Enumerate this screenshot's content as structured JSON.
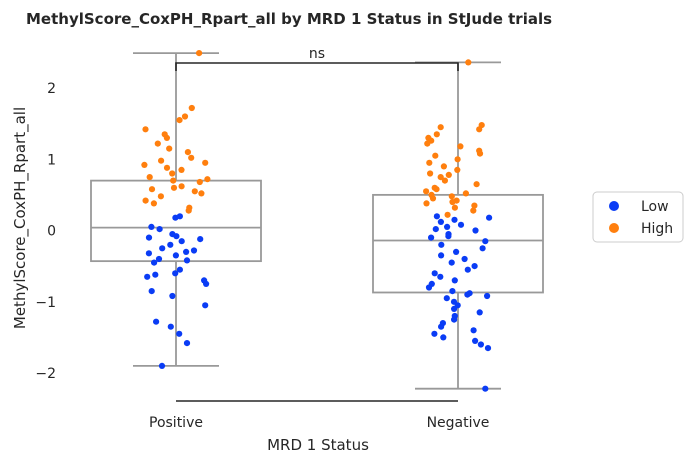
{
  "chart_data": {
    "type": "box-strip",
    "title": "MethylScore_CoxPH_Rpart_all by MRD 1 Status in StJude trials",
    "xlabel": "MRD 1 Status",
    "ylabel": "MethylScore_CoxPH_Rpart_all",
    "categories": [
      "Positive",
      "Negative"
    ],
    "ylim": [
      -2.45,
      2.5
    ],
    "yticks": [
      -2,
      -1,
      0,
      1,
      2
    ],
    "ytick_labels": [
      "−2",
      "−1",
      "0",
      "1",
      "2"
    ],
    "grid": false,
    "annotation": "ns",
    "boxes": [
      {
        "category": "Positive",
        "whisker_low": -1.9,
        "q1": -0.43,
        "median": 0.04,
        "q3": 0.7,
        "whisker_high": 2.49
      },
      {
        "category": "Negative",
        "whisker_low": -2.22,
        "q1": -0.87,
        "median": -0.14,
        "q3": 0.5,
        "whisker_high": 2.36
      }
    ],
    "legend": {
      "position": "right",
      "entries": [
        {
          "label": "Low",
          "color": "#0a3cf5"
        },
        {
          "label": "High",
          "color": "#ff7f0e"
        }
      ]
    },
    "series": [
      {
        "name": "Low",
        "color": "#0a3cf5",
        "points": [
          {
            "cat": 0,
            "y": 0.18
          },
          {
            "cat": 0,
            "y": 0.2
          },
          {
            "cat": 0,
            "y": 0.05
          },
          {
            "cat": 0,
            "y": 0.02
          },
          {
            "cat": 0,
            "y": -0.05
          },
          {
            "cat": 0,
            "y": -0.08
          },
          {
            "cat": 0,
            "y": -0.1
          },
          {
            "cat": 0,
            "y": -0.12
          },
          {
            "cat": 0,
            "y": -0.15
          },
          {
            "cat": 0,
            "y": -0.2
          },
          {
            "cat": 0,
            "y": -0.25
          },
          {
            "cat": 0,
            "y": -0.28
          },
          {
            "cat": 0,
            "y": -0.3
          },
          {
            "cat": 0,
            "y": -0.32
          },
          {
            "cat": 0,
            "y": -0.35
          },
          {
            "cat": 0,
            "y": -0.4
          },
          {
            "cat": 0,
            "y": -0.42
          },
          {
            "cat": 0,
            "y": -0.45
          },
          {
            "cat": 0,
            "y": -0.55
          },
          {
            "cat": 0,
            "y": -0.6
          },
          {
            "cat": 0,
            "y": -0.62
          },
          {
            "cat": 0,
            "y": -0.65
          },
          {
            "cat": 0,
            "y": -0.7
          },
          {
            "cat": 0,
            "y": -0.75
          },
          {
            "cat": 0,
            "y": -0.85
          },
          {
            "cat": 0,
            "y": -0.92
          },
          {
            "cat": 0,
            "y": -1.05
          },
          {
            "cat": 0,
            "y": -1.28
          },
          {
            "cat": 0,
            "y": -1.35
          },
          {
            "cat": 0,
            "y": -1.45
          },
          {
            "cat": 0,
            "y": -1.58
          },
          {
            "cat": 0,
            "y": -1.9
          },
          {
            "cat": 1,
            "y": 0.2
          },
          {
            "cat": 1,
            "y": 0.18
          },
          {
            "cat": 1,
            "y": 0.15
          },
          {
            "cat": 1,
            "y": 0.12
          },
          {
            "cat": 1,
            "y": 0.08
          },
          {
            "cat": 1,
            "y": 0.05
          },
          {
            "cat": 1,
            "y": 0.02
          },
          {
            "cat": 1,
            "y": 0.0
          },
          {
            "cat": 1,
            "y": -0.05
          },
          {
            "cat": 1,
            "y": -0.08
          },
          {
            "cat": 1,
            "y": -0.1
          },
          {
            "cat": 1,
            "y": -0.15
          },
          {
            "cat": 1,
            "y": -0.2
          },
          {
            "cat": 1,
            "y": -0.25
          },
          {
            "cat": 1,
            "y": -0.3
          },
          {
            "cat": 1,
            "y": -0.35
          },
          {
            "cat": 1,
            "y": -0.4
          },
          {
            "cat": 1,
            "y": -0.45
          },
          {
            "cat": 1,
            "y": -0.5
          },
          {
            "cat": 1,
            "y": -0.55
          },
          {
            "cat": 1,
            "y": -0.6
          },
          {
            "cat": 1,
            "y": -0.65
          },
          {
            "cat": 1,
            "y": -0.7
          },
          {
            "cat": 1,
            "y": -0.75
          },
          {
            "cat": 1,
            "y": -0.8
          },
          {
            "cat": 1,
            "y": -0.85
          },
          {
            "cat": 1,
            "y": -0.88
          },
          {
            "cat": 1,
            "y": -0.9
          },
          {
            "cat": 1,
            "y": -0.92
          },
          {
            "cat": 1,
            "y": -0.95
          },
          {
            "cat": 1,
            "y": -1.0
          },
          {
            "cat": 1,
            "y": -1.05
          },
          {
            "cat": 1,
            "y": -1.1
          },
          {
            "cat": 1,
            "y": -1.15
          },
          {
            "cat": 1,
            "y": -1.2
          },
          {
            "cat": 1,
            "y": -1.25
          },
          {
            "cat": 1,
            "y": -1.3
          },
          {
            "cat": 1,
            "y": -1.35
          },
          {
            "cat": 1,
            "y": -1.4
          },
          {
            "cat": 1,
            "y": -1.45
          },
          {
            "cat": 1,
            "y": -1.5
          },
          {
            "cat": 1,
            "y": -1.55
          },
          {
            "cat": 1,
            "y": -1.6
          },
          {
            "cat": 1,
            "y": -1.65
          },
          {
            "cat": 1,
            "y": -2.22
          }
        ]
      },
      {
        "name": "High",
        "color": "#ff7f0e",
        "points": [
          {
            "cat": 0,
            "y": 2.49
          },
          {
            "cat": 0,
            "y": 1.72
          },
          {
            "cat": 0,
            "y": 1.6
          },
          {
            "cat": 0,
            "y": 1.55
          },
          {
            "cat": 0,
            "y": 1.42
          },
          {
            "cat": 0,
            "y": 1.35
          },
          {
            "cat": 0,
            "y": 1.3
          },
          {
            "cat": 0,
            "y": 1.22
          },
          {
            "cat": 0,
            "y": 1.15
          },
          {
            "cat": 0,
            "y": 1.1
          },
          {
            "cat": 0,
            "y": 1.02
          },
          {
            "cat": 0,
            "y": 0.98
          },
          {
            "cat": 0,
            "y": 0.95
          },
          {
            "cat": 0,
            "y": 0.92
          },
          {
            "cat": 0,
            "y": 0.88
          },
          {
            "cat": 0,
            "y": 0.85
          },
          {
            "cat": 0,
            "y": 0.8
          },
          {
            "cat": 0,
            "y": 0.75
          },
          {
            "cat": 0,
            "y": 0.72
          },
          {
            "cat": 0,
            "y": 0.7
          },
          {
            "cat": 0,
            "y": 0.68
          },
          {
            "cat": 0,
            "y": 0.62
          },
          {
            "cat": 0,
            "y": 0.6
          },
          {
            "cat": 0,
            "y": 0.58
          },
          {
            "cat": 0,
            "y": 0.55
          },
          {
            "cat": 0,
            "y": 0.52
          },
          {
            "cat": 0,
            "y": 0.48
          },
          {
            "cat": 0,
            "y": 0.42
          },
          {
            "cat": 0,
            "y": 0.38
          },
          {
            "cat": 0,
            "y": 0.32
          },
          {
            "cat": 0,
            "y": 0.28
          },
          {
            "cat": 1,
            "y": 2.36
          },
          {
            "cat": 1,
            "y": 1.48
          },
          {
            "cat": 1,
            "y": 1.45
          },
          {
            "cat": 1,
            "y": 1.42
          },
          {
            "cat": 1,
            "y": 1.35
          },
          {
            "cat": 1,
            "y": 1.3
          },
          {
            "cat": 1,
            "y": 1.26
          },
          {
            "cat": 1,
            "y": 1.22
          },
          {
            "cat": 1,
            "y": 1.18
          },
          {
            "cat": 1,
            "y": 1.12
          },
          {
            "cat": 1,
            "y": 1.08
          },
          {
            "cat": 1,
            "y": 1.05
          },
          {
            "cat": 1,
            "y": 1.0
          },
          {
            "cat": 1,
            "y": 0.95
          },
          {
            "cat": 1,
            "y": 0.9
          },
          {
            "cat": 1,
            "y": 0.85
          },
          {
            "cat": 1,
            "y": 0.8
          },
          {
            "cat": 1,
            "y": 0.78
          },
          {
            "cat": 1,
            "y": 0.75
          },
          {
            "cat": 1,
            "y": 0.7
          },
          {
            "cat": 1,
            "y": 0.65
          },
          {
            "cat": 1,
            "y": 0.6
          },
          {
            "cat": 1,
            "y": 0.58
          },
          {
            "cat": 1,
            "y": 0.55
          },
          {
            "cat": 1,
            "y": 0.52
          },
          {
            "cat": 1,
            "y": 0.5
          },
          {
            "cat": 1,
            "y": 0.48
          },
          {
            "cat": 1,
            "y": 0.45
          },
          {
            "cat": 1,
            "y": 0.42
          },
          {
            "cat": 1,
            "y": 0.4
          },
          {
            "cat": 1,
            "y": 0.38
          },
          {
            "cat": 1,
            "y": 0.35
          },
          {
            "cat": 1,
            "y": 0.32
          },
          {
            "cat": 1,
            "y": 0.28
          },
          {
            "cat": 1,
            "y": 0.22
          }
        ]
      }
    ]
  }
}
